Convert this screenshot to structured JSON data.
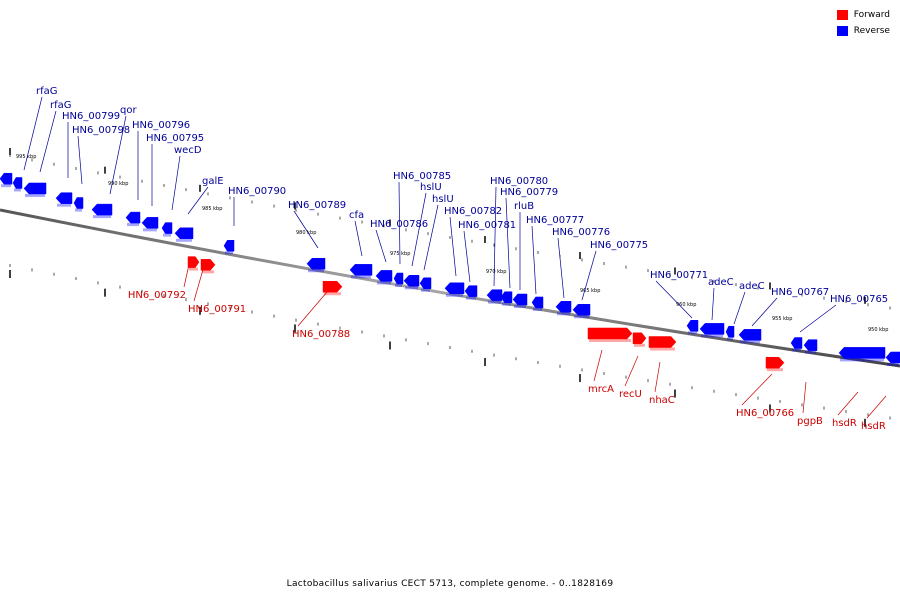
{
  "legend": {
    "forward_label": "Forward",
    "reverse_label": "Reverse",
    "forward_color": "#ff0000",
    "reverse_color": "#0000ff"
  },
  "caption": "Lactobacillus salivarius CECT 5713, complete genome. - 0..1828169",
  "kbp_ticks": [
    "995 kbp",
    "990 kbp",
    "985 kbp",
    "980 kbp",
    "975 kbp",
    "970 kbp",
    "965 kbp",
    "960 kbp",
    "955 kbp",
    "950 kbp"
  ],
  "genes": [
    {
      "name": "rfaG",
      "strand": "reverse"
    },
    {
      "name": "rfaG",
      "strand": "reverse"
    },
    {
      "name": "HN6_00799",
      "strand": "reverse"
    },
    {
      "name": "HN6_00798",
      "strand": "reverse"
    },
    {
      "name": "qor",
      "strand": "reverse"
    },
    {
      "name": "HN6_00796",
      "strand": "reverse"
    },
    {
      "name": "HN6_00795",
      "strand": "reverse"
    },
    {
      "name": "wecD",
      "strand": "reverse"
    },
    {
      "name": "galE",
      "strand": "reverse"
    },
    {
      "name": "HN6_00792",
      "strand": "forward"
    },
    {
      "name": "HN6_00791",
      "strand": "forward"
    },
    {
      "name": "HN6_00790",
      "strand": "reverse"
    },
    {
      "name": "HN6_00789",
      "strand": "reverse"
    },
    {
      "name": "HN6_00788",
      "strand": "forward"
    },
    {
      "name": "cfa",
      "strand": "reverse"
    },
    {
      "name": "HN6_00786",
      "strand": "reverse"
    },
    {
      "name": "HN6_00785",
      "strand": "reverse"
    },
    {
      "name": "hslU",
      "strand": "reverse"
    },
    {
      "name": "hslU",
      "strand": "reverse"
    },
    {
      "name": "HN6_00782",
      "strand": "reverse"
    },
    {
      "name": "HN6_00781",
      "strand": "reverse"
    },
    {
      "name": "HN6_00780",
      "strand": "reverse"
    },
    {
      "name": "HN6_00779",
      "strand": "reverse"
    },
    {
      "name": "rluB",
      "strand": "reverse"
    },
    {
      "name": "HN6_00777",
      "strand": "reverse"
    },
    {
      "name": "HN6_00776",
      "strand": "reverse"
    },
    {
      "name": "HN6_00775",
      "strand": "reverse"
    },
    {
      "name": "mrcA",
      "strand": "forward"
    },
    {
      "name": "recU",
      "strand": "forward"
    },
    {
      "name": "nhaC",
      "strand": "forward"
    },
    {
      "name": "HN6_00771",
      "strand": "reverse"
    },
    {
      "name": "adeC",
      "strand": "reverse"
    },
    {
      "name": "adeC",
      "strand": "reverse"
    },
    {
      "name": "HN6_00767",
      "strand": "reverse"
    },
    {
      "name": "HN6_00766",
      "strand": "forward"
    },
    {
      "name": "pgpB",
      "strand": "forward"
    },
    {
      "name": "HN6_00765",
      "strand": "reverse"
    },
    {
      "name": "hsdR",
      "strand": "forward"
    },
    {
      "name": "hsdR",
      "strand": "forward"
    }
  ]
}
